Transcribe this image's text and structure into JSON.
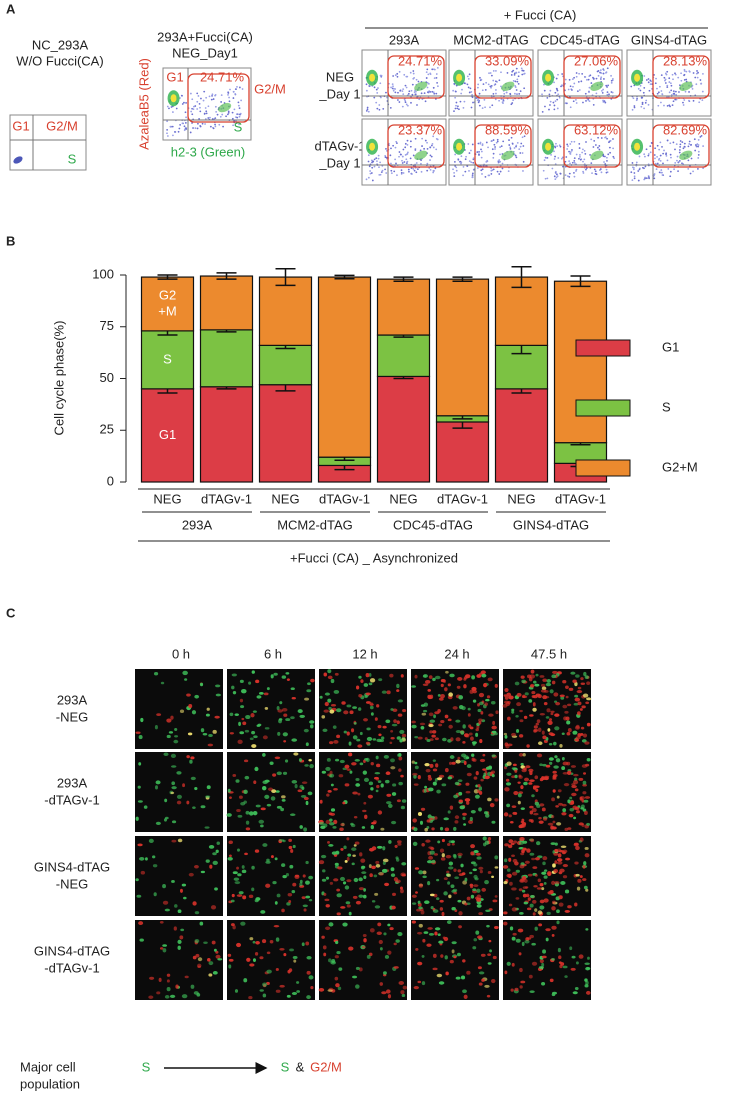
{
  "panel_a": {
    "panel_label": "A",
    "control": {
      "title": [
        "NC_293A",
        "W/O Fucci(CA)"
      ],
      "gates": {
        "g1": "G1",
        "g2m": "G2/M",
        "s": "S"
      }
    },
    "example": {
      "title": [
        "293A+Fucci(CA)",
        "NEG_Day1"
      ],
      "y_axis": "AzaleaB5 (Red)",
      "x_axis": "h2-3 (Green)",
      "gates": {
        "g1": "G1",
        "g2m": "G2/M",
        "s": "S"
      },
      "percent": "24.71%"
    },
    "grid": {
      "header": "+ Fucci (CA)",
      "columns": [
        "293A",
        "MCM2-dTAG",
        "CDC45-dTAG",
        "GINS4-dTAG"
      ],
      "rows": [
        [
          "NEG",
          "_Day 1"
        ],
        [
          "dTAGv-1",
          "_Day 1"
        ]
      ],
      "percents": [
        [
          "24.71%",
          "33.09%",
          "27.06%",
          "28.13%"
        ],
        [
          "23.37%",
          "88.59%",
          "63.12%",
          "82.69%"
        ]
      ]
    }
  },
  "chart_data": {
    "type": "stacked_bar",
    "panel_label": "B",
    "y_label": "Cell cycle phase(%)",
    "x_label": "+Fucci (CA) _ Asynchronized",
    "categories": [
      "NEG",
      "dTAGv-1",
      "NEG",
      "dTAGv-1",
      "NEG",
      "dTAGv-1",
      "NEG",
      "dTAGv-1"
    ],
    "groups": [
      "293A",
      "MCM2-dTAG",
      "CDC45-dTAG",
      "GINS4-dTAG"
    ],
    "series": [
      {
        "name": "G1",
        "color": "#dc3d46",
        "bar_label": [
          "G1"
        ],
        "values": [
          45,
          46,
          47,
          8,
          51,
          29,
          45,
          9
        ],
        "errors": [
          2,
          1,
          3,
          2,
          1,
          3,
          2,
          1.5
        ]
      },
      {
        "name": "S",
        "color": "#7cc243",
        "bar_label": [
          "S"
        ],
        "values": [
          28,
          27.5,
          19,
          4,
          20,
          3,
          21,
          10
        ],
        "errors": [
          2,
          1,
          1.5,
          1.5,
          1,
          1.5,
          4,
          1
        ]
      },
      {
        "name": "G2+M",
        "color": "#ec8a2e",
        "bar_label": [
          "G2",
          "+M"
        ],
        "values": [
          26,
          26,
          33,
          87,
          27,
          66,
          33,
          78
        ],
        "errors": [
          1,
          1.5,
          4,
          0.8,
          1,
          1,
          5,
          2.5
        ]
      }
    ],
    "ylim": [
      0,
      100
    ],
    "yticks": [
      0,
      25,
      50,
      75,
      100
    ],
    "legend": "right"
  },
  "panel_c": {
    "panel_label": "C",
    "columns": [
      "0 h",
      "6 h",
      "12 h",
      "24 h",
      "47.5 h"
    ],
    "rows": [
      [
        "293A",
        "-NEG"
      ],
      [
        "293A",
        "-dTAGv-1"
      ],
      [
        "GINS4-dTAG",
        "-NEG"
      ],
      [
        "GINS4-dTAG",
        "-dTAGv-1"
      ]
    ],
    "footer": {
      "label": [
        "Major cell",
        "population"
      ],
      "from": "S",
      "to": [
        "S",
        "&",
        "G2/M"
      ]
    }
  }
}
